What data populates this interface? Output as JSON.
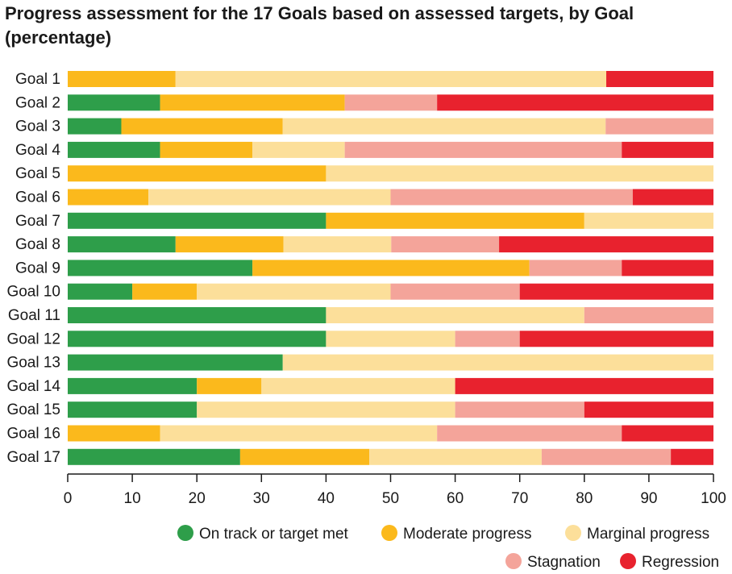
{
  "chart_data": {
    "type": "bar",
    "orientation": "horizontal",
    "stacked": true,
    "title": "Progress assessment for the 17 Goals based on assessed targets, by Goal (percentage)",
    "xlim": [
      0,
      100
    ],
    "xticks": [
      0,
      10,
      20,
      30,
      40,
      50,
      60,
      70,
      80,
      90,
      100
    ],
    "grid": false,
    "legend_position": "bottom-right",
    "categories": [
      "Goal 1",
      "Goal 2",
      "Goal 3",
      "Goal 4",
      "Goal 5",
      "Goal 6",
      "Goal 7",
      "Goal 8",
      "Goal 9",
      "Goal 10",
      "Goal 11",
      "Goal 12",
      "Goal 13",
      "Goal 14",
      "Goal 15",
      "Goal 16",
      "Goal 17"
    ],
    "series": [
      {
        "name": "On track or target met",
        "color": "#2e9e4a",
        "values": [
          0,
          14.3,
          8.3,
          14.3,
          0,
          0,
          40,
          16.7,
          28.6,
          10,
          40,
          40,
          33.3,
          20,
          20,
          0,
          26.7
        ]
      },
      {
        "name": "Moderate progress",
        "color": "#fbb91c",
        "values": [
          16.7,
          28.6,
          25,
          14.3,
          40,
          12.5,
          40,
          16.7,
          42.9,
          10,
          0,
          0,
          0,
          10,
          0,
          14.3,
          20
        ]
      },
      {
        "name": "Marginal progress",
        "color": "#fcdf9a",
        "values": [
          66.7,
          0,
          50,
          14.3,
          60,
          37.5,
          20,
          16.7,
          0,
          30,
          40,
          20,
          66.7,
          30,
          40,
          42.9,
          26.7
        ]
      },
      {
        "name": "Stagnation",
        "color": "#f4a49a",
        "values": [
          0,
          14.3,
          16.7,
          42.9,
          0,
          37.5,
          0,
          16.7,
          14.3,
          20,
          20,
          10,
          0,
          0,
          20,
          28.6,
          20
        ]
      },
      {
        "name": "Regression",
        "color": "#e8222e",
        "values": [
          16.7,
          42.9,
          0,
          14.3,
          0,
          12.5,
          0,
          33.3,
          14.3,
          30,
          0,
          30,
          0,
          40,
          20,
          14.3,
          6.7
        ]
      }
    ]
  }
}
